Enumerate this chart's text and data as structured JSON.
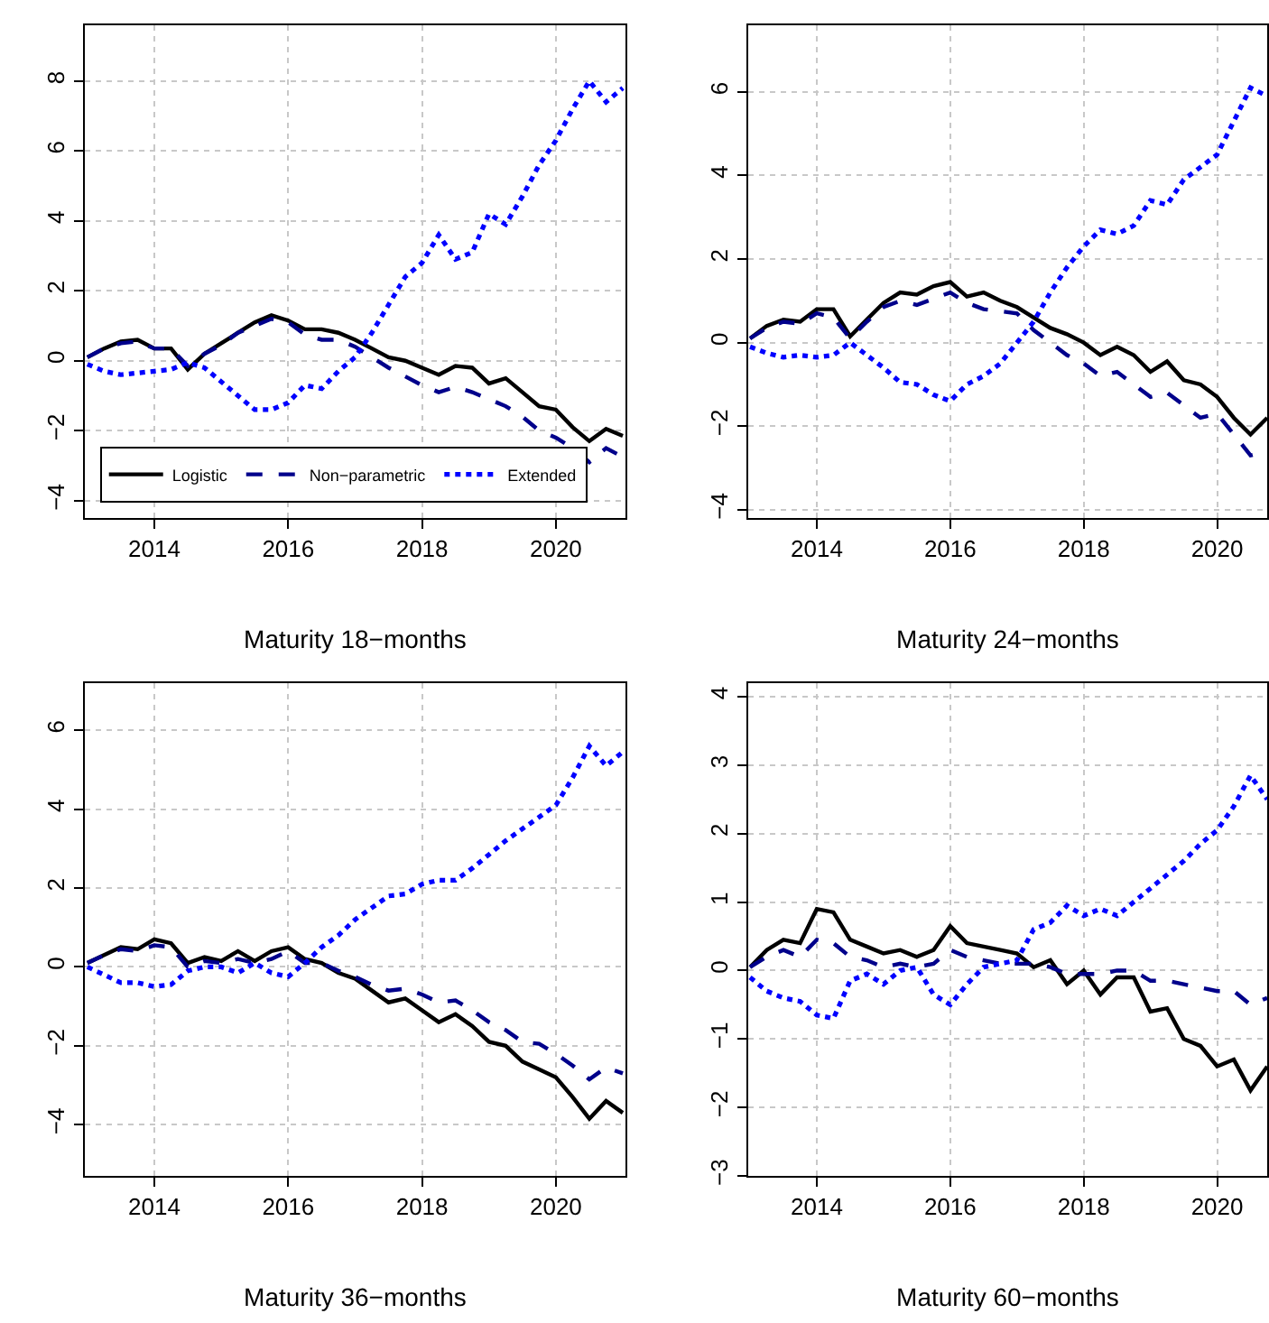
{
  "chart_data": [
    {
      "type": "line",
      "xlabel": "Maturity 18−months",
      "x": [
        2013.0,
        2013.25,
        2013.5,
        2013.75,
        2014.0,
        2014.25,
        2014.5,
        2014.75,
        2015.0,
        2015.25,
        2015.5,
        2015.75,
        2016.0,
        2016.25,
        2016.5,
        2016.75,
        2017.0,
        2017.25,
        2017.5,
        2017.75,
        2018.0,
        2018.25,
        2018.5,
        2018.75,
        2019.0,
        2019.25,
        2019.5,
        2019.75,
        2020.0,
        2020.25,
        2020.5,
        2020.75,
        2021.0
      ],
      "xlim": [
        2012.96,
        2021.04
      ],
      "xticks": [
        2014,
        2016,
        2018,
        2020
      ],
      "ylim": [
        -4.5,
        9.6
      ],
      "yticks": [
        -4,
        -2,
        0,
        2,
        4,
        6,
        8
      ],
      "grid": true,
      "legend": "bottom left",
      "series": [
        {
          "name": "Logistic",
          "color": "#000000",
          "line_style": "solid",
          "values": [
            0.1,
            0.35,
            0.55,
            0.6,
            0.35,
            0.35,
            -0.25,
            0.2,
            0.5,
            0.8,
            1.1,
            1.3,
            1.15,
            0.9,
            0.9,
            0.8,
            0.6,
            0.35,
            0.1,
            0.0,
            -0.2,
            -0.4,
            -0.15,
            -0.2,
            -0.65,
            -0.5,
            -0.9,
            -1.3,
            -1.4,
            -1.9,
            -2.3,
            -1.95,
            -2.15
          ]
        },
        {
          "name": "Non−parametric",
          "color": "#00008b",
          "line_style": "dashed",
          "values": [
            0.1,
            0.35,
            0.5,
            0.55,
            0.35,
            0.35,
            -0.15,
            0.2,
            0.45,
            0.8,
            1.0,
            1.2,
            1.1,
            0.75,
            0.6,
            0.6,
            0.4,
            0.1,
            -0.2,
            -0.45,
            -0.7,
            -0.9,
            -0.75,
            -0.9,
            -1.1,
            -1.3,
            -1.6,
            -2.0,
            -2.2,
            -2.5,
            -2.9,
            -2.5,
            -2.75
          ]
        },
        {
          "name": "Extended",
          "color": "#0000ff",
          "line_style": "dotted",
          "values": [
            -0.1,
            -0.3,
            -0.4,
            -0.35,
            -0.3,
            -0.25,
            -0.05,
            -0.2,
            -0.6,
            -1.0,
            -1.4,
            -1.4,
            -1.2,
            -0.7,
            -0.8,
            -0.3,
            0.1,
            0.8,
            1.6,
            2.4,
            2.8,
            3.6,
            2.9,
            3.1,
            4.2,
            3.9,
            4.7,
            5.6,
            6.3,
            7.2,
            8.0,
            7.4,
            7.8
          ]
        }
      ]
    },
    {
      "type": "line",
      "xlabel": "Maturity 24−months",
      "x": [
        2013.0,
        2013.25,
        2013.5,
        2013.75,
        2014.0,
        2014.25,
        2014.5,
        2014.75,
        2015.0,
        2015.25,
        2015.5,
        2015.75,
        2016.0,
        2016.25,
        2016.5,
        2016.75,
        2017.0,
        2017.25,
        2017.5,
        2017.75,
        2018.0,
        2018.25,
        2018.5,
        2018.75,
        2019.0,
        2019.25,
        2019.5,
        2019.75,
        2020.0,
        2020.25,
        2020.5,
        2020.75
      ],
      "xlim": [
        2012.97,
        2020.75
      ],
      "xticks": [
        2014,
        2016,
        2018,
        2020
      ],
      "ylim": [
        -4.2,
        7.6
      ],
      "yticks": [
        -4,
        -2,
        0,
        2,
        4,
        6
      ],
      "grid": true,
      "series": [
        {
          "color": "#000000",
          "line_style": "solid",
          "values": [
            0.1,
            0.4,
            0.55,
            0.5,
            0.8,
            0.8,
            0.15,
            0.55,
            0.95,
            1.2,
            1.15,
            1.35,
            1.45,
            1.1,
            1.2,
            1.0,
            0.85,
            0.6,
            0.35,
            0.2,
            0.0,
            -0.3,
            -0.1,
            -0.3,
            -0.7,
            -0.45,
            -0.9,
            -1.0,
            -1.3,
            -1.8,
            -2.2,
            -1.8
          ]
        },
        {
          "color": "#00008b",
          "line_style": "dashed",
          "values": [
            0.1,
            0.35,
            0.5,
            0.45,
            0.7,
            0.6,
            0.1,
            0.5,
            0.85,
            1.0,
            0.9,
            1.05,
            1.2,
            0.95,
            0.8,
            0.75,
            0.7,
            0.3,
            0.0,
            -0.3,
            -0.5,
            -0.8,
            -0.7,
            -1.0,
            -1.3,
            -1.2,
            -1.5,
            -1.8,
            -1.7,
            -2.2,
            -2.7,
            -2.6
          ]
        },
        {
          "color": "#0000ff",
          "line_style": "dotted",
          "values": [
            -0.1,
            -0.25,
            -0.35,
            -0.3,
            -0.35,
            -0.3,
            0.0,
            -0.3,
            -0.6,
            -0.95,
            -1.0,
            -1.25,
            -1.4,
            -1.0,
            -0.8,
            -0.5,
            0.0,
            0.5,
            1.2,
            1.8,
            2.3,
            2.7,
            2.6,
            2.8,
            3.4,
            3.3,
            3.9,
            4.2,
            4.5,
            5.3,
            6.1,
            5.9
          ]
        }
      ]
    },
    {
      "type": "line",
      "xlabel": "Maturity 36−months",
      "x": [
        2013.0,
        2013.25,
        2013.5,
        2013.75,
        2014.0,
        2014.25,
        2014.5,
        2014.75,
        2015.0,
        2015.25,
        2015.5,
        2015.75,
        2016.0,
        2016.25,
        2016.5,
        2016.75,
        2017.0,
        2017.25,
        2017.5,
        2017.75,
        2018.0,
        2018.25,
        2018.5,
        2018.75,
        2019.0,
        2019.25,
        2019.5,
        2019.75,
        2020.0,
        2020.25,
        2020.5,
        2020.75,
        2021.0
      ],
      "xlim": [
        2012.96,
        2021.04
      ],
      "xticks": [
        2014,
        2016,
        2018,
        2020
      ],
      "ylim": [
        -5.3,
        7.2
      ],
      "yticks": [
        -4,
        -2,
        0,
        2,
        4,
        6
      ],
      "grid": true,
      "series": [
        {
          "color": "#000000",
          "line_style": "solid",
          "values": [
            0.1,
            0.3,
            0.5,
            0.45,
            0.7,
            0.6,
            0.1,
            0.25,
            0.15,
            0.4,
            0.15,
            0.4,
            0.5,
            0.2,
            0.1,
            -0.15,
            -0.3,
            -0.6,
            -0.9,
            -0.8,
            -1.1,
            -1.4,
            -1.2,
            -1.5,
            -1.9,
            -2.0,
            -2.4,
            -2.6,
            -2.8,
            -3.3,
            -3.85,
            -3.4,
            -3.7
          ]
        },
        {
          "color": "#00008b",
          "line_style": "dashed",
          "values": [
            0.1,
            0.3,
            0.45,
            0.4,
            0.55,
            0.5,
            0.0,
            0.15,
            0.1,
            0.2,
            0.1,
            0.2,
            0.4,
            0.1,
            0.1,
            -0.1,
            -0.25,
            -0.45,
            -0.6,
            -0.55,
            -0.7,
            -0.9,
            -0.85,
            -1.1,
            -1.4,
            -1.6,
            -1.9,
            -1.95,
            -2.2,
            -2.5,
            -2.85,
            -2.55,
            -2.7
          ]
        },
        {
          "color": "#0000ff",
          "line_style": "dotted",
          "values": [
            0.0,
            -0.2,
            -0.4,
            -0.4,
            -0.5,
            -0.45,
            -0.1,
            0.0,
            0.0,
            -0.15,
            0.1,
            -0.15,
            -0.25,
            0.1,
            0.5,
            0.8,
            1.2,
            1.5,
            1.8,
            1.85,
            2.1,
            2.2,
            2.2,
            2.5,
            2.85,
            3.2,
            3.5,
            3.8,
            4.1,
            4.8,
            5.6,
            5.1,
            5.45
          ]
        }
      ]
    },
    {
      "type": "line",
      "xlabel": "Maturity 60−months",
      "x": [
        2013.0,
        2013.25,
        2013.5,
        2013.75,
        2014.0,
        2014.25,
        2014.5,
        2014.75,
        2015.0,
        2015.25,
        2015.5,
        2015.75,
        2016.0,
        2016.25,
        2016.5,
        2016.75,
        2017.0,
        2017.25,
        2017.5,
        2017.75,
        2018.0,
        2018.25,
        2018.5,
        2018.75,
        2019.0,
        2019.25,
        2019.5,
        2019.75,
        2020.0,
        2020.25,
        2020.5,
        2020.75
      ],
      "xlim": [
        2012.97,
        2020.75
      ],
      "xticks": [
        2014,
        2016,
        2018,
        2020
      ],
      "ylim": [
        -3.0,
        4.2
      ],
      "yticks": [
        -3,
        -2,
        -1,
        0,
        1,
        2,
        3,
        4
      ],
      "grid": true,
      "series": [
        {
          "color": "#000000",
          "line_style": "solid",
          "values": [
            0.05,
            0.3,
            0.45,
            0.4,
            0.9,
            0.85,
            0.45,
            0.35,
            0.25,
            0.3,
            0.2,
            0.3,
            0.65,
            0.4,
            0.35,
            0.3,
            0.25,
            0.05,
            0.15,
            -0.2,
            0.0,
            -0.35,
            -0.1,
            -0.1,
            -0.6,
            -0.55,
            -1.0,
            -1.1,
            -1.4,
            -1.3,
            -1.75,
            -1.4
          ]
        },
        {
          "color": "#00008b",
          "line_style": "dashed",
          "values": [
            0.05,
            0.2,
            0.3,
            0.2,
            0.45,
            0.4,
            0.2,
            0.15,
            0.05,
            0.1,
            0.05,
            0.1,
            0.3,
            0.2,
            0.15,
            0.1,
            0.1,
            0.1,
            0.05,
            -0.05,
            -0.05,
            -0.05,
            0.0,
            0.0,
            -0.15,
            -0.15,
            -0.2,
            -0.25,
            -0.3,
            -0.3,
            -0.5,
            -0.4
          ]
        },
        {
          "color": "#0000ff",
          "line_style": "dotted",
          "values": [
            -0.1,
            -0.3,
            -0.4,
            -0.45,
            -0.65,
            -0.7,
            -0.15,
            -0.05,
            -0.2,
            0.0,
            0.05,
            -0.35,
            -0.5,
            -0.2,
            0.05,
            0.1,
            0.15,
            0.6,
            0.7,
            0.95,
            0.8,
            0.9,
            0.8,
            1.0,
            1.2,
            1.4,
            1.6,
            1.85,
            2.05,
            2.4,
            2.85,
            2.5
          ]
        }
      ]
    }
  ]
}
